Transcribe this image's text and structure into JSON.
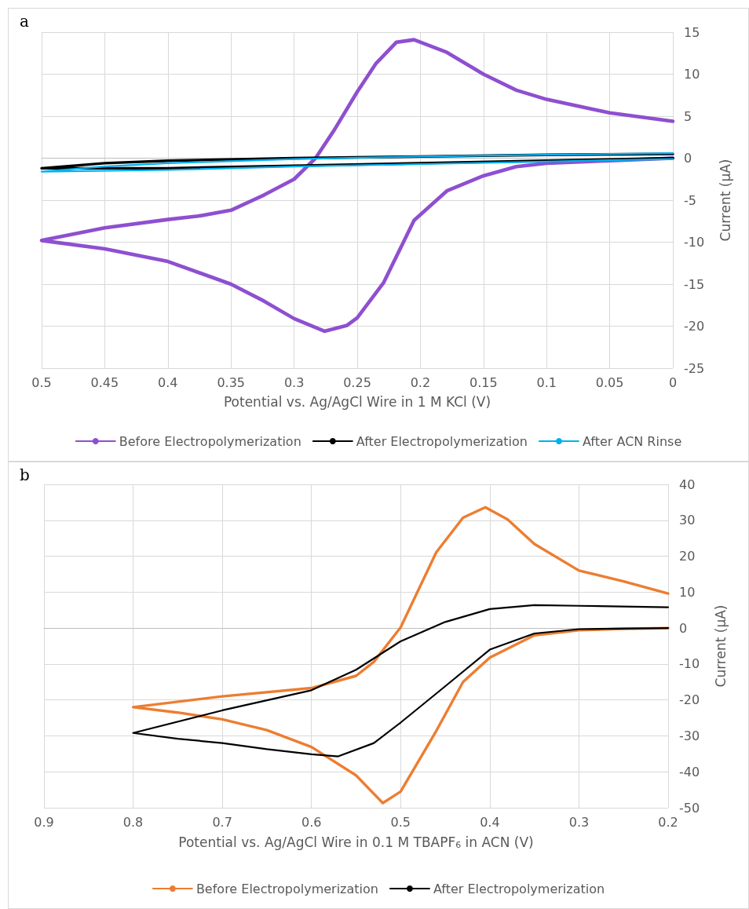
{
  "chart_data": [
    {
      "type": "line",
      "annotations": [
        "a"
      ],
      "xlabel": "Potential vs. Ag/AgCl Wire in 1 M KCl (V)",
      "ylabel": "Current (μA)",
      "xlim": [
        0.5,
        0
      ],
      "xticks": [
        0.5,
        0.45,
        0.4,
        0.35,
        0.3,
        0.25,
        0.2,
        0.15,
        0.1,
        0.05,
        0
      ],
      "ylim": [
        -25,
        15
      ],
      "yticks": [
        -25,
        -20,
        -15,
        -10,
        -5,
        0,
        5,
        10,
        15
      ],
      "grid": true,
      "legend": "bottom",
      "marker": "none",
      "line_style": "solid",
      "series": [
        {
          "name": "Before Electropolymerization",
          "color": "#8e4fd0",
          "x": [
            0,
            0.05,
            0.1,
            0.124,
            0.15,
            0.179,
            0.205,
            0.219,
            0.235,
            0.25,
            0.268,
            0.283,
            0.3,
            0.324,
            0.35,
            0.376,
            0.4,
            0.45,
            0.5,
            0.45,
            0.4,
            0.35,
            0.324,
            0.3,
            0.276,
            0.258,
            0.25,
            0.229,
            0.205,
            0.179,
            0.15,
            0.124,
            0.1,
            0.05,
            0
          ],
          "values": [
            4.4,
            5.4,
            7.0,
            8.1,
            10,
            12.6,
            14.1,
            13.8,
            11.3,
            7.9,
            3.4,
            0,
            -2.5,
            -4.4,
            -6.2,
            -6.9,
            -7.3,
            -8.3,
            -9.8,
            -10.8,
            -12.3,
            -15,
            -17,
            -19.1,
            -20.6,
            -19.9,
            -19,
            -14.8,
            -7.4,
            -3.9,
            -2.1,
            -1,
            -0.6,
            -0.3,
            0
          ]
        },
        {
          "name": "After Electropolymerization",
          "color": "#000000",
          "x": [
            0,
            0.1,
            0.2,
            0.3,
            0.4,
            0.45,
            0.5,
            0.4,
            0.3,
            0.2,
            0.1,
            0
          ],
          "values": [
            0.5,
            0.4,
            0.2,
            0,
            -0.3,
            -0.6,
            -1.2,
            -1.2,
            -0.9,
            -0.6,
            -0.3,
            0
          ]
        },
        {
          "name": "After ACN Rinse",
          "color": "#00b0f0",
          "x": [
            0,
            0.1,
            0.2,
            0.3,
            0.4,
            0.45,
            0.5,
            0.4,
            0.3,
            0.2,
            0.1,
            0
          ],
          "values": [
            0.6,
            0.4,
            0.2,
            -0.1,
            -0.6,
            -1,
            -1.6,
            -1.4,
            -1,
            -0.7,
            -0.4,
            -0.1
          ]
        }
      ]
    },
    {
      "type": "line",
      "annotations": [
        "b"
      ],
      "xlabel": "Potential vs. Ag/AgCl Wire in 0.1 M TBAPF$_{6}$ in ACN (V)",
      "ylabel": "Current (μA)",
      "xlim": [
        0.9,
        0.2
      ],
      "xticks": [
        0.9,
        0.8,
        0.7,
        0.6,
        0.5,
        0.4,
        0.3,
        0.2
      ],
      "ylim": [
        -50,
        40
      ],
      "yticks": [
        -50,
        -40,
        -30,
        -20,
        -10,
        0,
        10,
        20,
        30,
        40
      ],
      "grid": true,
      "legend": "bottom",
      "marker": "none",
      "line_style": "solid",
      "series": [
        {
          "name": "Before Electropolymerization",
          "color": "#ed7d31",
          "x": [
            0.2,
            0.25,
            0.3,
            0.35,
            0.38,
            0.405,
            0.43,
            0.46,
            0.5,
            0.53,
            0.55,
            0.6,
            0.7,
            0.8,
            0.75,
            0.7,
            0.65,
            0.6,
            0.55,
            0.52,
            0.5,
            0.46,
            0.43,
            0.4,
            0.35,
            0.3,
            0.25,
            0.2
          ],
          "values": [
            9.6,
            13,
            16,
            23.4,
            30.2,
            33.6,
            30.7,
            21.1,
            0.2,
            -9.4,
            -13.3,
            -16.7,
            -19,
            -22,
            -23.5,
            -25.4,
            -28.4,
            -33.1,
            -41,
            -48.7,
            -45.5,
            -28.6,
            -15,
            -8.2,
            -2,
            -0.6,
            -0.2,
            0
          ]
        },
        {
          "name": "After Electropolymerization",
          "color": "#000000",
          "x": [
            0.2,
            0.3,
            0.35,
            0.4,
            0.45,
            0.5,
            0.55,
            0.6,
            0.7,
            0.8,
            0.75,
            0.7,
            0.65,
            0.6,
            0.57,
            0.53,
            0.5,
            0.45,
            0.4,
            0.35,
            0.3,
            0.2
          ],
          "values": [
            5.8,
            6.2,
            6.4,
            5.3,
            1.7,
            -3.7,
            -11.6,
            -17.3,
            -22.9,
            -29.2,
            -30.8,
            -32,
            -33.7,
            -35.1,
            -35.7,
            -32,
            -26.3,
            -16.2,
            -6,
            -1.5,
            -0.3,
            0
          ]
        }
      ]
    }
  ]
}
